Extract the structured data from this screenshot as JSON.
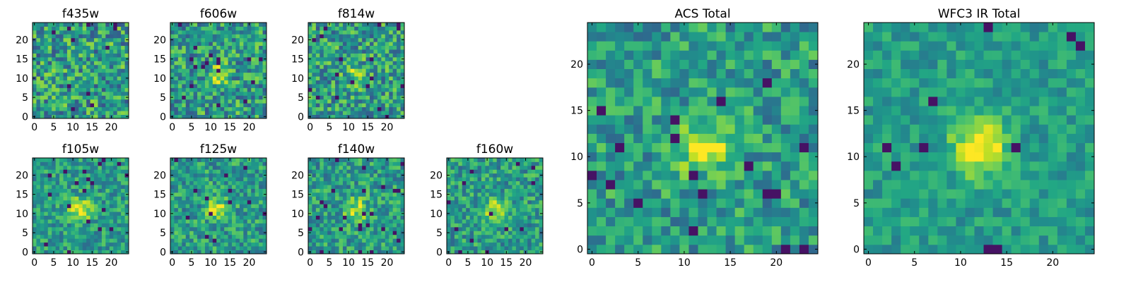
{
  "colors": {
    "colormap": "viridis"
  },
  "chart_data": [
    {
      "type": "heatmap",
      "title": "f435w",
      "xticks": [
        "0",
        "5",
        "10",
        "15",
        "20"
      ],
      "yticks": [
        "0",
        "5",
        "10",
        "15",
        "20"
      ],
      "xlim": [
        -0.5,
        24.5
      ],
      "ylim": [
        -0.5,
        24.5
      ],
      "grid_size": 25,
      "source_peak": [
        12,
        11
      ],
      "source_strength": 0.0,
      "noise": 0.3,
      "seed": 11
    },
    {
      "type": "heatmap",
      "title": "f606w",
      "xticks": [
        "0",
        "5",
        "10",
        "15",
        "20"
      ],
      "yticks": [
        "0",
        "5",
        "10",
        "15",
        "20"
      ],
      "xlim": [
        -0.5,
        24.5
      ],
      "ylim": [
        -0.5,
        24.5
      ],
      "grid_size": 25,
      "source_peak": [
        12,
        11
      ],
      "source_strength": 0.45,
      "noise": 0.28,
      "seed": 23
    },
    {
      "type": "heatmap",
      "title": "f814w",
      "xticks": [
        "0",
        "5",
        "10",
        "15",
        "20"
      ],
      "yticks": [
        "0",
        "5",
        "10",
        "15",
        "20"
      ],
      "xlim": [
        -0.5,
        24.5
      ],
      "ylim": [
        -0.5,
        24.5
      ],
      "grid_size": 25,
      "source_peak": [
        12,
        11
      ],
      "source_strength": 0.4,
      "noise": 0.28,
      "seed": 37
    },
    {
      "type": "heatmap",
      "title": "f105w",
      "xticks": [
        "0",
        "5",
        "10",
        "15",
        "20"
      ],
      "yticks": [
        "0",
        "5",
        "10",
        "15",
        "20"
      ],
      "xlim": [
        -0.5,
        24.5
      ],
      "ylim": [
        -0.5,
        24.5
      ],
      "grid_size": 25,
      "source_peak": [
        12,
        11
      ],
      "source_strength": 0.75,
      "noise": 0.2,
      "seed": 41
    },
    {
      "type": "heatmap",
      "title": "f125w",
      "xticks": [
        "0",
        "5",
        "10",
        "15",
        "20"
      ],
      "yticks": [
        "0",
        "5",
        "10",
        "15",
        "20"
      ],
      "xlim": [
        -0.5,
        24.5
      ],
      "ylim": [
        -0.5,
        24.5
      ],
      "grid_size": 25,
      "source_peak": [
        12,
        11
      ],
      "source_strength": 0.65,
      "noise": 0.22,
      "seed": 53
    },
    {
      "type": "heatmap",
      "title": "f140w",
      "xticks": [
        "0",
        "5",
        "10",
        "15",
        "20"
      ],
      "yticks": [
        "0",
        "5",
        "10",
        "15",
        "20"
      ],
      "xlim": [
        -0.5,
        24.5
      ],
      "ylim": [
        -0.5,
        24.5
      ],
      "grid_size": 25,
      "source_peak": [
        12,
        11
      ],
      "source_strength": 0.6,
      "noise": 0.22,
      "seed": 67
    },
    {
      "type": "heatmap",
      "title": "f160w",
      "xticks": [
        "0",
        "5",
        "10",
        "15",
        "20"
      ],
      "yticks": [
        "0",
        "5",
        "10",
        "15",
        "20"
      ],
      "xlim": [
        -0.5,
        24.5
      ],
      "ylim": [
        -0.5,
        24.5
      ],
      "grid_size": 25,
      "source_peak": [
        12,
        11
      ],
      "source_strength": 0.65,
      "noise": 0.22,
      "seed": 79
    },
    {
      "type": "heatmap",
      "title": "ACS Total",
      "xticks": [
        "0",
        "5",
        "10",
        "15",
        "20"
      ],
      "yticks": [
        "0",
        "5",
        "10",
        "15",
        "20"
      ],
      "xlim": [
        -0.5,
        24.5
      ],
      "ylim": [
        -0.5,
        24.5
      ],
      "grid_size": 25,
      "source_peak": [
        12,
        11
      ],
      "source_strength": 0.7,
      "noise": 0.22,
      "seed": 83
    },
    {
      "type": "heatmap",
      "title": "WFC3 IR Total",
      "xticks": [
        "0",
        "5",
        "10",
        "15",
        "20"
      ],
      "yticks": [
        "0",
        "5",
        "10",
        "15",
        "20"
      ],
      "xlim": [
        -0.5,
        24.5
      ],
      "ylim": [
        -0.5,
        24.5
      ],
      "grid_size": 25,
      "source_peak": [
        12,
        11
      ],
      "source_strength": 0.9,
      "noise": 0.14,
      "seed": 97
    }
  ]
}
